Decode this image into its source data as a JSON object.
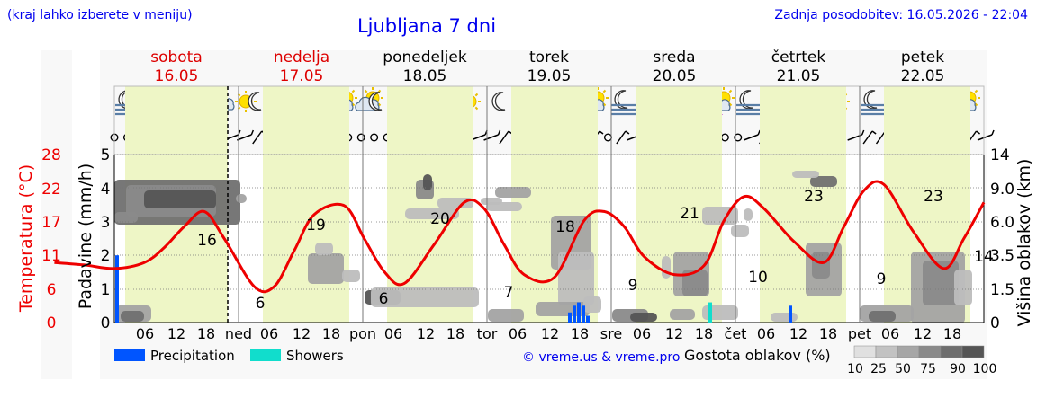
{
  "header": {
    "hint": "(kraj lahko izberete v meniju)",
    "title": "Ljubljana 7 dni",
    "updated": "Zadnja posodobitev: 16.05.2026 - 22:04"
  },
  "days": [
    {
      "name": "sobota",
      "date": "16.05",
      "weekend": true,
      "abbr": ""
    },
    {
      "name": "nedelja",
      "date": "17.05",
      "weekend": true,
      "abbr": "ned"
    },
    {
      "name": "ponedeljek",
      "date": "18.05",
      "weekend": false,
      "abbr": "pon"
    },
    {
      "name": "torek",
      "date": "19.05",
      "weekend": false,
      "abbr": "tor"
    },
    {
      "name": "sreda",
      "date": "20.05",
      "weekend": false,
      "abbr": "sre"
    },
    {
      "name": "četrtek",
      "date": "21.05",
      "weekend": false,
      "abbr": "čet"
    },
    {
      "name": "petek",
      "date": "22.05",
      "weekend": false,
      "abbr": "pet"
    }
  ],
  "hour_ticks": [
    "06",
    "12",
    "18"
  ],
  "axes": {
    "left_temp_label": "Temperatura (°C)",
    "left_temp_ticks": [
      "28",
      "22",
      "17",
      "11",
      "6",
      "0"
    ],
    "left_precip_label": "Padavine (mm/h)",
    "left_precip_ticks": [
      "5",
      "4",
      "3",
      "2",
      "1",
      "0"
    ],
    "right_label": "Višina oblakov (km)",
    "right_ticks": [
      "14",
      "9.0",
      "6.0",
      "3.5",
      "1.5",
      "0"
    ]
  },
  "legend": {
    "precipitation": "Precipitation",
    "showers": "Showers",
    "copyright": "© vreme.us & vreme.pro",
    "cloud_density": "Gostota oblakov (%)",
    "density_ticks": [
      "10",
      "25",
      "50",
      "75",
      "90",
      "100"
    ]
  },
  "colors": {
    "temperature": "#ee0000",
    "precipitation": "#0055ff",
    "showers": "#11ddcc",
    "daylight": "#eef6c6",
    "weekend": "#dd0000"
  },
  "icons": [
    "moon-icon",
    "sun-icon",
    "partly-cloudy-icon",
    "cloud-icon",
    "fog-icon",
    "rain-icon",
    "thunder-icon",
    "wind-barb-icon"
  ],
  "chart_data": {
    "type": "line",
    "temp_extrema_labels": [
      {
        "hour": 34,
        "value": "16"
      },
      {
        "hour": 40,
        "value": "6"
      },
      {
        "hour": 60,
        "value": "19"
      },
      {
        "hour": 64,
        "value": "6"
      },
      {
        "hour": 84,
        "value": "20"
      },
      {
        "hour": 88,
        "value": "7"
      },
      {
        "hour": 108,
        "value": "18"
      },
      {
        "hour": 112,
        "value": "9"
      },
      {
        "hour": 132,
        "value": "21"
      },
      {
        "hour": 136,
        "value": "10"
      },
      {
        "hour": 156,
        "value": "23"
      },
      {
        "hour": 160,
        "value": "9"
      },
      {
        "hour": 180,
        "value": "23"
      },
      {
        "hour": 184,
        "value": "14"
      }
    ],
    "temperature": {
      "unit": "°C",
      "hours": [
        0,
        6,
        12,
        18,
        22,
        26,
        30,
        34,
        40,
        44,
        48,
        52,
        58,
        62,
        66,
        70,
        76,
        82,
        86,
        90,
        94,
        100,
        106,
        110,
        114,
        118,
        124,
        130,
        134,
        138,
        142,
        148,
        154,
        158,
        162,
        166,
        172,
        178,
        182,
        186
      ],
      "values": [
        10,
        9.6,
        9,
        10,
        12.5,
        16,
        18.5,
        14,
        6,
        6,
        12,
        18,
        19.5,
        14,
        8.5,
        6.5,
        13,
        20,
        19,
        13,
        8,
        7.5,
        17,
        18.5,
        16,
        11,
        8,
        9.5,
        17,
        21,
        19,
        13.5,
        10,
        16,
        22,
        23,
        15,
        9,
        14,
        20
      ]
    },
    "precipitation": {
      "unit": "mm/h",
      "hours": [
        107.5,
        108,
        108.5,
        109,
        109.5,
        110,
        139,
        170
      ],
      "values": [
        0.3,
        0.5,
        0.6,
        0.5,
        0.2,
        0.2,
        0,
        0.5
      ],
      "name": "Precipitation"
    },
    "showers": {
      "unit": "mm/h",
      "hours": [
        128
      ],
      "values": [
        0.6
      ],
      "name": "Showers"
    },
    "ylim_precip": [
      0,
      5
    ],
    "ylim_temp": [
      0,
      28
    ]
  }
}
